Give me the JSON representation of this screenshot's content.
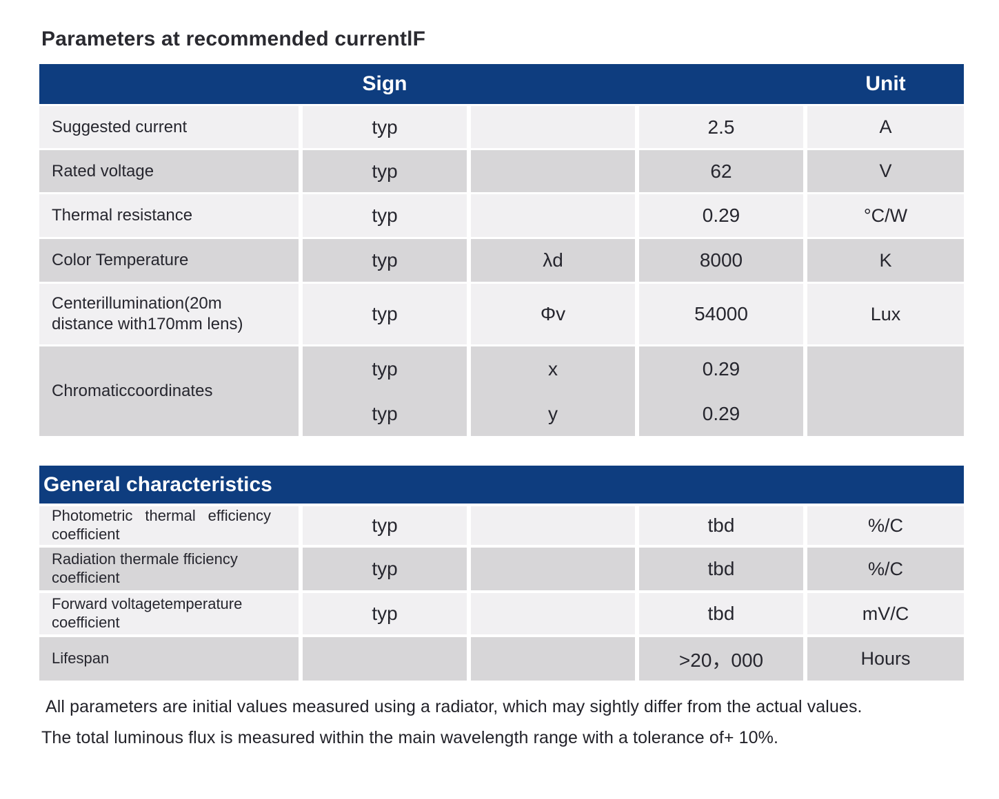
{
  "page": {
    "title": "Parameters at recommended currentlF",
    "footer_lines": [
      "All parameters are initial values measured using a radiator, which may sightly differ from the actual values.",
      "The total luminous flux is measured within the main wavelength range with a tolerance of+ 10%."
    ]
  },
  "colors": {
    "header_blue": "#0e3d7f",
    "row_light": "#f1f0f2",
    "row_gray": "#d7d6d8",
    "text": "#26262e"
  },
  "table1": {
    "header": {
      "sign": "Sign",
      "unit": "Unit"
    },
    "rows": [
      {
        "label": "Suggested current",
        "sign": "typ",
        "symbol": "",
        "value": "2.5",
        "unit": "A"
      },
      {
        "label": "Rated voltage",
        "sign": "typ",
        "symbol": "",
        "value": "62",
        "unit": "V"
      },
      {
        "label": "Thermal resistance",
        "sign": "typ",
        "symbol": "",
        "value": "0.29",
        "unit": "°C/W"
      },
      {
        "label": "Color Temperature",
        "sign": "typ",
        "symbol": "λd",
        "value": "8000",
        "unit": "K"
      },
      {
        "label": "Centerillumination(20m distance with170mm lens)",
        "sign": "typ",
        "symbol": "Φv",
        "value": "54000",
        "unit": "Lux"
      }
    ],
    "chromatic": {
      "label": "Chromaticcoordinates",
      "sub_rows": [
        {
          "sign": "typ",
          "symbol": "x",
          "value": "0.29"
        },
        {
          "sign": "typ",
          "symbol": "y",
          "value": "0.29"
        }
      ],
      "unit": ""
    }
  },
  "table2": {
    "header": "General characteristics",
    "rows": [
      {
        "label": "Photometric thermal efficiency coefficient",
        "sign": "typ",
        "symbol": "",
        "value": "tbd",
        "unit": "%/C"
      },
      {
        "label": "Radiation thermale fficiency coefficient",
        "sign": "typ",
        "symbol": "",
        "value": "tbd",
        "unit": "%/C"
      },
      {
        "label": "Forward voltagetemperature coefficient",
        "sign": "typ",
        "symbol": "",
        "value": "tbd",
        "unit": "mV/C"
      },
      {
        "label": "Lifespan",
        "sign": "",
        "symbol": "",
        "value": ">20，000",
        "unit": "Hours"
      }
    ]
  }
}
